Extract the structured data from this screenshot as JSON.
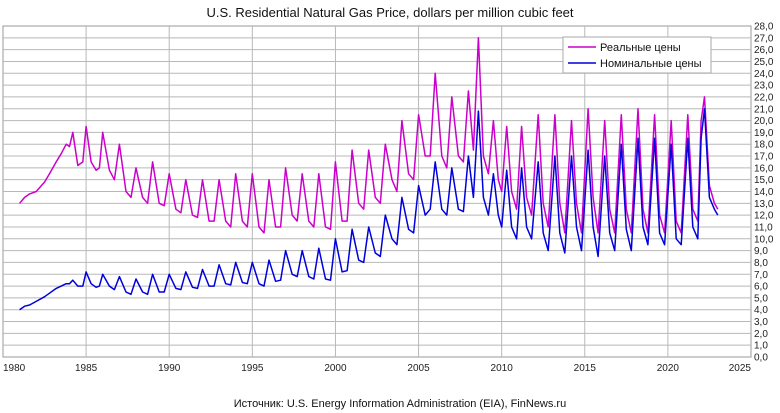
{
  "chart_data": {
    "type": "line",
    "title": "U.S. Residential Natural Gas Price, dollars per million cubic feet",
    "source": "Источник: U.S. Energy Information Administration (EIA), FinNews.ru",
    "xlabel": "",
    "ylabel": "",
    "xlim": [
      1980,
      2025
    ],
    "ylim": [
      0,
      28
    ],
    "x_ticks": [
      "1980",
      "1985",
      "1990",
      "1995",
      "2000",
      "2005",
      "2010",
      "2015",
      "2020",
      "2025"
    ],
    "y_ticks": [
      "0,0",
      "1,0",
      "2,0",
      "3,0",
      "4,0",
      "5,0",
      "6,0",
      "7,0",
      "8,0",
      "9,0",
      "10,0",
      "11,0",
      "12,0",
      "13,0",
      "14,0",
      "15,0",
      "16,0",
      "17,0",
      "18,0",
      "19,0",
      "20,0",
      "21,0",
      "22,0",
      "23,0",
      "24,0",
      "25,0",
      "26,0",
      "27,0",
      "28,0"
    ],
    "grid": true,
    "legend_position": "top-right",
    "series": [
      {
        "name": "Реальные цены",
        "color": "#cc00cc",
        "points": [
          [
            1981.0,
            13.0
          ],
          [
            1981.3,
            13.5
          ],
          [
            1981.6,
            13.8
          ],
          [
            1982.0,
            14.0
          ],
          [
            1982.5,
            14.8
          ],
          [
            1982.8,
            15.5
          ],
          [
            1983.2,
            16.5
          ],
          [
            1983.5,
            17.2
          ],
          [
            1983.8,
            18.0
          ],
          [
            1984.0,
            17.8
          ],
          [
            1984.2,
            19.0
          ],
          [
            1984.5,
            16.2
          ],
          [
            1984.8,
            16.5
          ],
          [
            1985.0,
            19.5
          ],
          [
            1985.3,
            16.5
          ],
          [
            1985.6,
            15.8
          ],
          [
            1985.8,
            16.0
          ],
          [
            1986.0,
            19.0
          ],
          [
            1986.4,
            15.8
          ],
          [
            1986.7,
            15.0
          ],
          [
            1987.0,
            18.0
          ],
          [
            1987.4,
            14.0
          ],
          [
            1987.7,
            13.5
          ],
          [
            1988.0,
            16.0
          ],
          [
            1988.4,
            13.5
          ],
          [
            1988.7,
            13.0
          ],
          [
            1989.0,
            16.5
          ],
          [
            1989.4,
            13.0
          ],
          [
            1989.7,
            12.8
          ],
          [
            1990.0,
            15.5
          ],
          [
            1990.4,
            12.5
          ],
          [
            1990.7,
            12.2
          ],
          [
            1991.0,
            15.0
          ],
          [
            1991.4,
            12.0
          ],
          [
            1991.7,
            11.8
          ],
          [
            1992.0,
            15.0
          ],
          [
            1992.4,
            11.5
          ],
          [
            1992.7,
            11.5
          ],
          [
            1993.0,
            15.0
          ],
          [
            1993.4,
            11.5
          ],
          [
            1993.7,
            11.0
          ],
          [
            1994.0,
            15.5
          ],
          [
            1994.4,
            11.5
          ],
          [
            1994.7,
            11.0
          ],
          [
            1995.0,
            15.5
          ],
          [
            1995.4,
            11.0
          ],
          [
            1995.7,
            10.5
          ],
          [
            1996.0,
            15.0
          ],
          [
            1996.4,
            11.0
          ],
          [
            1996.7,
            11.0
          ],
          [
            1997.0,
            16.0
          ],
          [
            1997.4,
            12.0
          ],
          [
            1997.7,
            11.5
          ],
          [
            1998.0,
            15.5
          ],
          [
            1998.4,
            11.5
          ],
          [
            1998.7,
            11.0
          ],
          [
            1999.0,
            15.5
          ],
          [
            1999.4,
            11.0
          ],
          [
            1999.7,
            10.8
          ],
          [
            2000.0,
            16.5
          ],
          [
            2000.4,
            11.5
          ],
          [
            2000.7,
            11.5
          ],
          [
            2001.0,
            17.5
          ],
          [
            2001.4,
            13.0
          ],
          [
            2001.7,
            12.5
          ],
          [
            2002.0,
            17.5
          ],
          [
            2002.4,
            13.5
          ],
          [
            2002.7,
            13.0
          ],
          [
            2003.0,
            18.0
          ],
          [
            2003.4,
            15.0
          ],
          [
            2003.7,
            14.0
          ],
          [
            2004.0,
            20.0
          ],
          [
            2004.4,
            15.5
          ],
          [
            2004.7,
            15.0
          ],
          [
            2005.0,
            20.5
          ],
          [
            2005.4,
            17.0
          ],
          [
            2005.7,
            17.0
          ],
          [
            2006.0,
            24.0
          ],
          [
            2006.4,
            17.0
          ],
          [
            2006.7,
            16.0
          ],
          [
            2007.0,
            22.0
          ],
          [
            2007.4,
            17.0
          ],
          [
            2007.7,
            16.5
          ],
          [
            2008.0,
            22.5
          ],
          [
            2008.3,
            17.5
          ],
          [
            2008.6,
            27.0
          ],
          [
            2008.9,
            17.0
          ],
          [
            2009.2,
            15.5
          ],
          [
            2009.5,
            20.0
          ],
          [
            2009.8,
            15.0
          ],
          [
            2010.0,
            14.0
          ],
          [
            2010.3,
            19.5
          ],
          [
            2010.6,
            14.0
          ],
          [
            2010.9,
            12.5
          ],
          [
            2011.2,
            19.5
          ],
          [
            2011.5,
            13.5
          ],
          [
            2011.8,
            12.0
          ],
          [
            2012.2,
            20.5
          ],
          [
            2012.5,
            13.0
          ],
          [
            2012.8,
            11.0
          ],
          [
            2013.2,
            20.5
          ],
          [
            2013.5,
            13.0
          ],
          [
            2013.8,
            10.5
          ],
          [
            2014.2,
            20.0
          ],
          [
            2014.5,
            13.0
          ],
          [
            2014.8,
            10.5
          ],
          [
            2015.2,
            21.0
          ],
          [
            2015.5,
            13.5
          ],
          [
            2015.8,
            10.5
          ],
          [
            2016.2,
            20.0
          ],
          [
            2016.5,
            12.5
          ],
          [
            2016.8,
            10.5
          ],
          [
            2017.2,
            20.5
          ],
          [
            2017.5,
            12.5
          ],
          [
            2017.8,
            10.5
          ],
          [
            2018.2,
            21.0
          ],
          [
            2018.5,
            12.5
          ],
          [
            2018.8,
            10.5
          ],
          [
            2019.2,
            20.5
          ],
          [
            2019.5,
            12.0
          ],
          [
            2019.8,
            10.5
          ],
          [
            2020.2,
            20.0
          ],
          [
            2020.5,
            11.5
          ],
          [
            2020.8,
            10.5
          ],
          [
            2021.2,
            20.5
          ],
          [
            2021.5,
            12.5
          ],
          [
            2021.8,
            11.5
          ],
          [
            2022.0,
            20.0
          ],
          [
            2022.2,
            22.0
          ],
          [
            2022.5,
            14.5
          ],
          [
            2022.8,
            13.0
          ],
          [
            2023.0,
            12.5
          ]
        ]
      },
      {
        "name": "Номинальные цены",
        "color": "#0000dd",
        "points": [
          [
            1981.0,
            4.0
          ],
          [
            1981.3,
            4.3
          ],
          [
            1981.6,
            4.4
          ],
          [
            1982.0,
            4.7
          ],
          [
            1982.5,
            5.1
          ],
          [
            1982.8,
            5.4
          ],
          [
            1983.2,
            5.8
          ],
          [
            1983.5,
            6.0
          ],
          [
            1983.8,
            6.2
          ],
          [
            1984.0,
            6.2
          ],
          [
            1984.2,
            6.5
          ],
          [
            1984.5,
            6.0
          ],
          [
            1984.8,
            6.0
          ],
          [
            1985.0,
            7.2
          ],
          [
            1985.3,
            6.2
          ],
          [
            1985.6,
            5.9
          ],
          [
            1985.8,
            6.0
          ],
          [
            1986.0,
            7.0
          ],
          [
            1986.4,
            6.0
          ],
          [
            1986.7,
            5.7
          ],
          [
            1987.0,
            6.8
          ],
          [
            1987.4,
            5.5
          ],
          [
            1987.7,
            5.3
          ],
          [
            1988.0,
            6.6
          ],
          [
            1988.4,
            5.5
          ],
          [
            1988.7,
            5.3
          ],
          [
            1989.0,
            7.0
          ],
          [
            1989.4,
            5.5
          ],
          [
            1989.7,
            5.5
          ],
          [
            1990.0,
            7.0
          ],
          [
            1990.4,
            5.8
          ],
          [
            1990.7,
            5.7
          ],
          [
            1991.0,
            7.2
          ],
          [
            1991.4,
            5.9
          ],
          [
            1991.7,
            5.8
          ],
          [
            1992.0,
            7.4
          ],
          [
            1992.4,
            6.0
          ],
          [
            1992.7,
            6.0
          ],
          [
            1993.0,
            7.8
          ],
          [
            1993.4,
            6.2
          ],
          [
            1993.7,
            6.1
          ],
          [
            1994.0,
            8.0
          ],
          [
            1994.4,
            6.3
          ],
          [
            1994.7,
            6.2
          ],
          [
            1995.0,
            8.0
          ],
          [
            1995.4,
            6.2
          ],
          [
            1995.7,
            6.0
          ],
          [
            1996.0,
            8.2
          ],
          [
            1996.4,
            6.4
          ],
          [
            1996.7,
            6.5
          ],
          [
            1997.0,
            9.0
          ],
          [
            1997.4,
            7.0
          ],
          [
            1997.7,
            6.8
          ],
          [
            1998.0,
            9.0
          ],
          [
            1998.4,
            6.8
          ],
          [
            1998.7,
            6.6
          ],
          [
            1999.0,
            9.2
          ],
          [
            1999.4,
            6.6
          ],
          [
            1999.7,
            6.5
          ],
          [
            2000.0,
            10.0
          ],
          [
            2000.4,
            7.2
          ],
          [
            2000.7,
            7.3
          ],
          [
            2001.0,
            10.8
          ],
          [
            2001.4,
            8.2
          ],
          [
            2001.7,
            8.0
          ],
          [
            2002.0,
            11.0
          ],
          [
            2002.4,
            8.8
          ],
          [
            2002.7,
            8.5
          ],
          [
            2003.0,
            12.0
          ],
          [
            2003.4,
            10.0
          ],
          [
            2003.7,
            9.5
          ],
          [
            2004.0,
            13.5
          ],
          [
            2004.4,
            10.8
          ],
          [
            2004.7,
            10.5
          ],
          [
            2005.0,
            14.5
          ],
          [
            2005.4,
            12.0
          ],
          [
            2005.7,
            12.5
          ],
          [
            2006.0,
            16.5
          ],
          [
            2006.4,
            12.5
          ],
          [
            2006.7,
            12.0
          ],
          [
            2007.0,
            16.0
          ],
          [
            2007.4,
            12.5
          ],
          [
            2007.7,
            12.3
          ],
          [
            2008.0,
            17.0
          ],
          [
            2008.3,
            13.5
          ],
          [
            2008.6,
            20.8
          ],
          [
            2008.9,
            13.5
          ],
          [
            2009.2,
            12.0
          ],
          [
            2009.5,
            15.5
          ],
          [
            2009.8,
            12.0
          ],
          [
            2010.0,
            11.0
          ],
          [
            2010.3,
            15.8
          ],
          [
            2010.6,
            11.0
          ],
          [
            2010.9,
            10.0
          ],
          [
            2011.2,
            16.0
          ],
          [
            2011.5,
            11.0
          ],
          [
            2011.8,
            10.0
          ],
          [
            2012.2,
            16.5
          ],
          [
            2012.5,
            10.5
          ],
          [
            2012.8,
            9.0
          ],
          [
            2013.2,
            17.0
          ],
          [
            2013.5,
            10.5
          ],
          [
            2013.8,
            8.8
          ],
          [
            2014.2,
            17.0
          ],
          [
            2014.5,
            11.0
          ],
          [
            2014.8,
            9.0
          ],
          [
            2015.2,
            17.5
          ],
          [
            2015.5,
            11.0
          ],
          [
            2015.8,
            8.5
          ],
          [
            2016.2,
            17.0
          ],
          [
            2016.5,
            10.5
          ],
          [
            2016.8,
            9.0
          ],
          [
            2017.2,
            18.0
          ],
          [
            2017.5,
            10.8
          ],
          [
            2017.8,
            9.0
          ],
          [
            2018.2,
            18.5
          ],
          [
            2018.5,
            11.0
          ],
          [
            2018.8,
            9.5
          ],
          [
            2019.2,
            18.5
          ],
          [
            2019.5,
            10.5
          ],
          [
            2019.8,
            9.5
          ],
          [
            2020.2,
            18.0
          ],
          [
            2020.5,
            10.0
          ],
          [
            2020.8,
            9.5
          ],
          [
            2021.2,
            18.5
          ],
          [
            2021.5,
            11.0
          ],
          [
            2021.8,
            10.0
          ],
          [
            2022.0,
            18.5
          ],
          [
            2022.2,
            21.0
          ],
          [
            2022.5,
            13.5
          ],
          [
            2022.8,
            12.5
          ],
          [
            2023.0,
            12.0
          ]
        ]
      }
    ]
  }
}
